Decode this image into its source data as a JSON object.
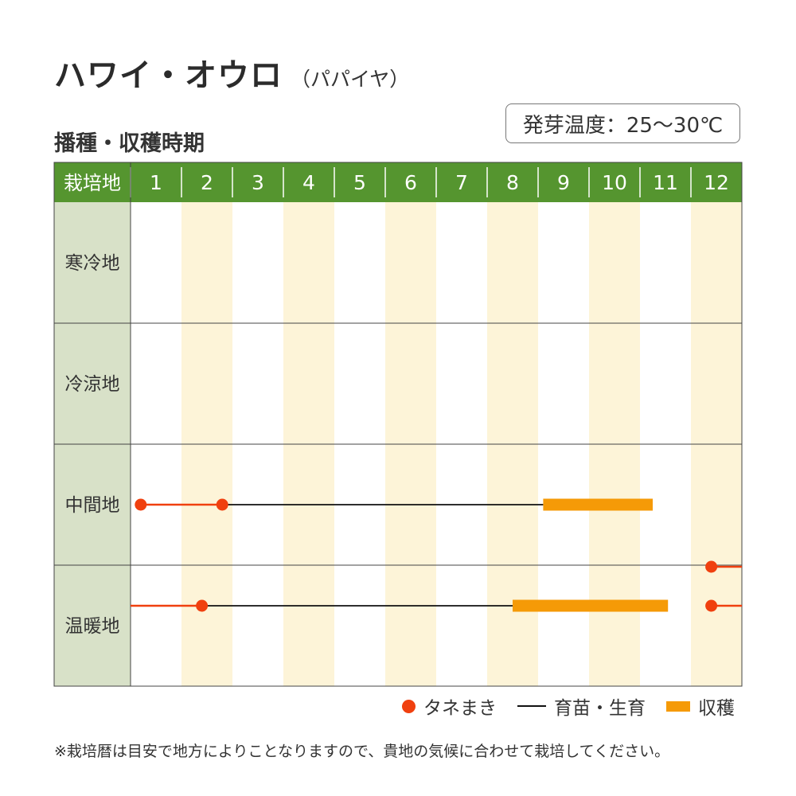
{
  "title": {
    "main": "ハワイ・オウロ",
    "sub": "（パパイヤ）"
  },
  "section_title": "播種・収穫時期",
  "germination_temp": "発芽温度：25～30℃",
  "colors": {
    "header_green": "#55952f",
    "region_cell": "#d8e1c8",
    "month_stripe": "#fdf4d8",
    "sowing": "#f0400f",
    "growing": "#111111",
    "harvest": "#f59a07"
  },
  "legend": {
    "sowing": "タネまき",
    "growing": "育苗・生育",
    "harvest": "収穫"
  },
  "note": "※栽培暦は目安で地方によりことなりますので、貴地の気候に合わせて栽培してください。",
  "chart_data": {
    "type": "table",
    "header_label": "栽培地",
    "months": [
      "1",
      "2",
      "3",
      "4",
      "5",
      "6",
      "7",
      "8",
      "9",
      "10",
      "11",
      "12"
    ],
    "regions": [
      {
        "name": "寒冷地",
        "sowing": [],
        "growing": [],
        "harvest": []
      },
      {
        "name": "冷涼地",
        "sowing": [],
        "growing": [],
        "harvest": []
      },
      {
        "name": "中間地",
        "sowing": [
          [
            0.2,
            1.8
          ]
        ],
        "growing": [
          [
            1.8,
            8.1
          ]
        ],
        "harvest": [
          [
            8.1,
            10.25
          ]
        ]
      },
      {
        "name": "温暖地",
        "sowing": [
          [
            0.0,
            1.4
          ],
          [
            11.4,
            12.0
          ]
        ],
        "growing": [
          [
            1.4,
            7.5
          ]
        ],
        "harvest": [
          [
            7.5,
            10.55
          ]
        ]
      }
    ]
  }
}
